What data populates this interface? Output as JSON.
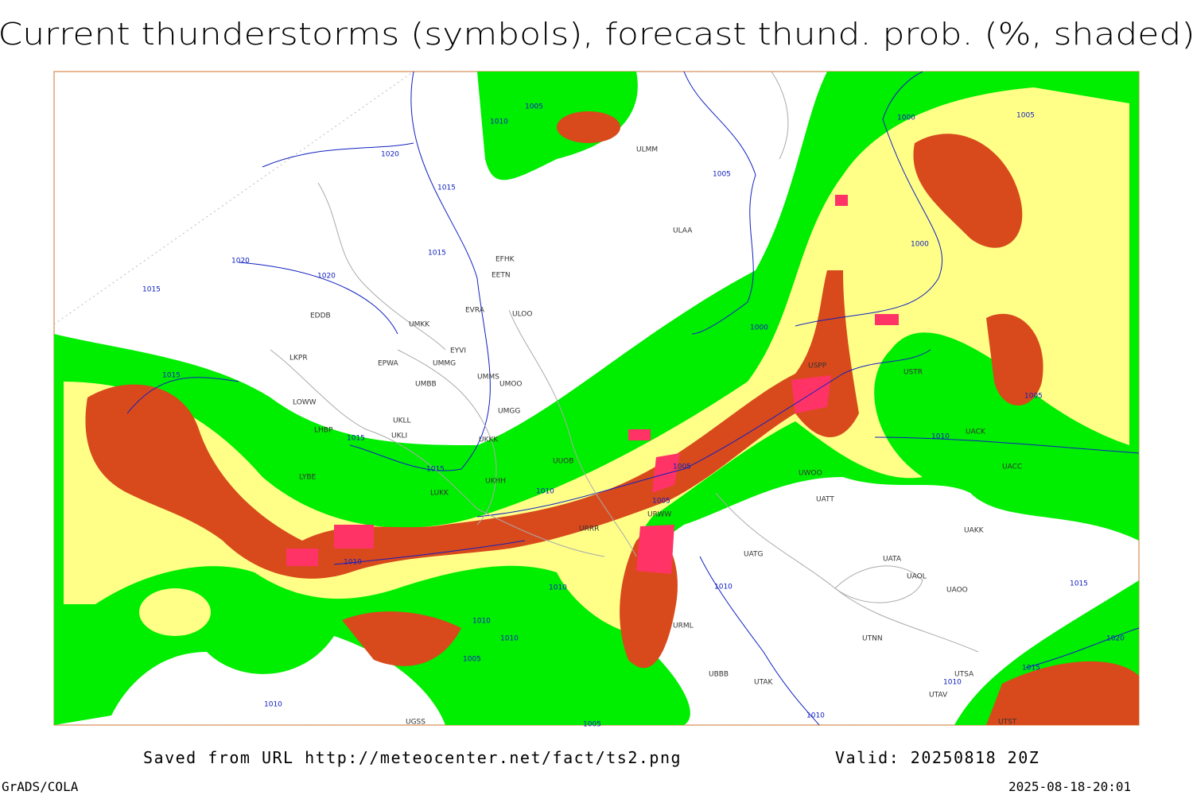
{
  "header": {
    "title": "Current thunderstorms (symbols), forecast thund. prob. (%, shaded)"
  },
  "map": {
    "isobar_labels": [
      "1005",
      "1010",
      "1020",
      "1015",
      "1015",
      "1020",
      "1020",
      "1015",
      "1005",
      "1000",
      "1005",
      "1000",
      "1000",
      "1015",
      "1015",
      "1015",
      "1010",
      "1005",
      "1005",
      "1010",
      "1010",
      "1010",
      "1010",
      "1010",
      "1005",
      "1010",
      "1005",
      "1010",
      "1010",
      "1005",
      "1015",
      "1015",
      "1020",
      "1010"
    ],
    "stations": [
      "ULMM",
      "ULAA",
      "EFHK",
      "EETN",
      "EVRA",
      "ULOO",
      "UMKK",
      "EYVI",
      "UMMG",
      "EPWA",
      "LKPR",
      "UMMS",
      "UMOO",
      "UMBB",
      "UMGG",
      "UKLL",
      "UKLI",
      "UKKK",
      "LOWW",
      "LHBP",
      "LYBE",
      "LUKK",
      "UUOB",
      "URRR",
      "URWW",
      "USPP",
      "UWOO",
      "UATT",
      "UATG",
      "UATA",
      "UAOL",
      "UAOO",
      "UACK",
      "UACC",
      "UAKK",
      "USTR",
      "UTNN",
      "UTAK",
      "UBBB",
      "UTSA",
      "UTAV",
      "UTST",
      "EDDB",
      "UKHH",
      "URML",
      "UGSS"
    ]
  },
  "footer": {
    "source": "Saved from URL http://meteocenter.net/fact/ts2.png",
    "valid": "Valid: 20250818 20Z",
    "software": "GrADS/COLA",
    "timestamp": "2025-08-18-20:01"
  }
}
